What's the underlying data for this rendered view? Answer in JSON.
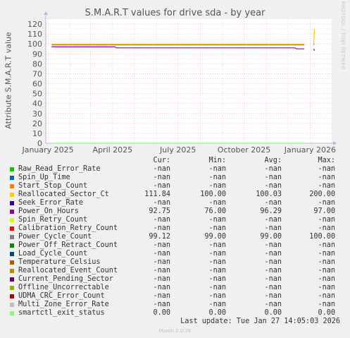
{
  "chart_data": {
    "type": "line",
    "title": "S.M.A.R.T values for drive sda - by year",
    "ylabel": "Attribute S.M.A.R.T value",
    "ylim": [
      0,
      125
    ],
    "yticks": [
      0,
      10,
      20,
      30,
      40,
      50,
      60,
      70,
      80,
      90,
      100,
      110,
      120
    ],
    "x_tick_labels": [
      "January 2025",
      "April 2025",
      "July 2025",
      "October 2025",
      "January 2026"
    ],
    "x_tick_dates": [
      "2025-01-01",
      "2025-04-01",
      "2025-07-01",
      "2025-10-01",
      "2026-01-01"
    ],
    "xlim": [
      "2024-12-29",
      "2026-01-31"
    ],
    "grid": true,
    "series": [
      {
        "name": "Raw_Read_Error_Rate",
        "color": "#00cc00",
        "points": []
      },
      {
        "name": "Spin_Up_Time",
        "color": "#0066b3",
        "points": []
      },
      {
        "name": "Start_Stop_Count",
        "color": "#ff8000",
        "points": []
      },
      {
        "name": "Reallocated_Sector_Ct",
        "color": "#ffcc00",
        "points": [
          [
            "2025-01-06",
            100
          ],
          [
            "2025-12-24",
            100
          ],
          null,
          [
            "2026-01-06",
            100
          ],
          [
            "2026-01-07",
            115
          ]
        ]
      },
      {
        "name": "Seek_Error_Rate",
        "color": "#330099",
        "points": []
      },
      {
        "name": "Power_On_Hours",
        "color": "#990099",
        "points": [
          [
            "2025-01-06",
            97
          ],
          [
            "2025-04-04",
            97
          ],
          [
            "2025-04-06",
            96
          ],
          [
            "2025-12-11",
            96
          ],
          [
            "2025-12-13",
            95
          ],
          [
            "2025-12-24",
            95
          ],
          null,
          [
            "2026-01-06",
            95
          ],
          [
            "2026-01-07",
            93
          ]
        ]
      },
      {
        "name": "Spin_Retry_Count",
        "color": "#ccff00",
        "points": []
      },
      {
        "name": "Calibration_Retry_Count",
        "color": "#ff0000",
        "points": []
      },
      {
        "name": "Power_Cycle_Count",
        "color": "#808080",
        "points": [
          [
            "2025-01-06",
            99
          ],
          [
            "2025-12-24",
            99
          ],
          null,
          [
            "2026-01-06",
            99
          ],
          [
            "2026-01-07",
            100
          ]
        ]
      },
      {
        "name": "Power_Off_Retract_Count",
        "color": "#008f00",
        "points": []
      },
      {
        "name": "Load_Cycle_Count",
        "color": "#00487d",
        "points": []
      },
      {
        "name": "Temperature_Celsius",
        "color": "#b35a00",
        "points": []
      },
      {
        "name": "Reallocated_Event_Count",
        "color": "#b38f00",
        "points": []
      },
      {
        "name": "Current_Pending_Sector",
        "color": "#6b006b",
        "points": []
      },
      {
        "name": "Offline_Uncorrectable",
        "color": "#8fb300",
        "points": []
      },
      {
        "name": "UDMA_CRC_Error_Count",
        "color": "#b30000",
        "points": []
      },
      {
        "name": "Multi_Zone_Error_Rate",
        "color": "#bebebe",
        "points": []
      },
      {
        "name": "smartctl_exit_status",
        "color": "#80ff80",
        "points": [
          [
            "2025-01-06",
            0
          ],
          [
            "2025-12-24",
            0
          ],
          null,
          [
            "2026-01-06",
            0
          ],
          [
            "2026-01-07",
            0
          ]
        ]
      }
    ]
  },
  "side_label": "RRDTOOL / TOBI OETIKER",
  "table": {
    "headers": [
      "Cur:",
      "Min:",
      "Avg:",
      "Max:"
    ],
    "rows": [
      {
        "label": "Raw_Read_Error_Rate",
        "cur": "-nan",
        "min": "-nan",
        "avg": "-nan",
        "max": "-nan"
      },
      {
        "label": "Spin_Up_Time",
        "cur": "-nan",
        "min": "-nan",
        "avg": "-nan",
        "max": "-nan"
      },
      {
        "label": "Start_Stop_Count",
        "cur": "-nan",
        "min": "-nan",
        "avg": "-nan",
        "max": "-nan"
      },
      {
        "label": "Reallocated_Sector_Ct",
        "cur": "111.84",
        "min": "100.00",
        "avg": "100.03",
        "max": "200.00"
      },
      {
        "label": "Seek_Error_Rate",
        "cur": "-nan",
        "min": "-nan",
        "avg": "-nan",
        "max": "-nan"
      },
      {
        "label": "Power_On_Hours",
        "cur": "92.75",
        "min": "76.00",
        "avg": "96.29",
        "max": "97.00"
      },
      {
        "label": "Spin_Retry_Count",
        "cur": "-nan",
        "min": "-nan",
        "avg": "-nan",
        "max": "-nan"
      },
      {
        "label": "Calibration_Retry_Count",
        "cur": "-nan",
        "min": "-nan",
        "avg": "-nan",
        "max": "-nan"
      },
      {
        "label": "Power_Cycle_Count",
        "cur": "99.12",
        "min": "99.00",
        "avg": "99.00",
        "max": "100.00"
      },
      {
        "label": "Power_Off_Retract_Count",
        "cur": "-nan",
        "min": "-nan",
        "avg": "-nan",
        "max": "-nan"
      },
      {
        "label": "Load_Cycle_Count",
        "cur": "-nan",
        "min": "-nan",
        "avg": "-nan",
        "max": "-nan"
      },
      {
        "label": "Temperature_Celsius",
        "cur": "-nan",
        "min": "-nan",
        "avg": "-nan",
        "max": "-nan"
      },
      {
        "label": "Reallocated_Event_Count",
        "cur": "-nan",
        "min": "-nan",
        "avg": "-nan",
        "max": "-nan"
      },
      {
        "label": "Current_Pending_Sector",
        "cur": "-nan",
        "min": "-nan",
        "avg": "-nan",
        "max": "-nan"
      },
      {
        "label": "Offline_Uncorrectable",
        "cur": "-nan",
        "min": "-nan",
        "avg": "-nan",
        "max": "-nan"
      },
      {
        "label": "UDMA_CRC_Error_Count",
        "cur": "-nan",
        "min": "-nan",
        "avg": "-nan",
        "max": "-nan"
      },
      {
        "label": "Multi_Zone_Error_Rate",
        "cur": "-nan",
        "min": "-nan",
        "avg": "-nan",
        "max": "-nan"
      },
      {
        "label": "smartctl_exit_status",
        "cur": "0.00",
        "min": "0.00",
        "avg": "0.00",
        "max": "0.00"
      }
    ]
  },
  "last_update": "Last update: Tue Jan 27 14:05:03 2026",
  "footer": "Munin 2.0.76"
}
